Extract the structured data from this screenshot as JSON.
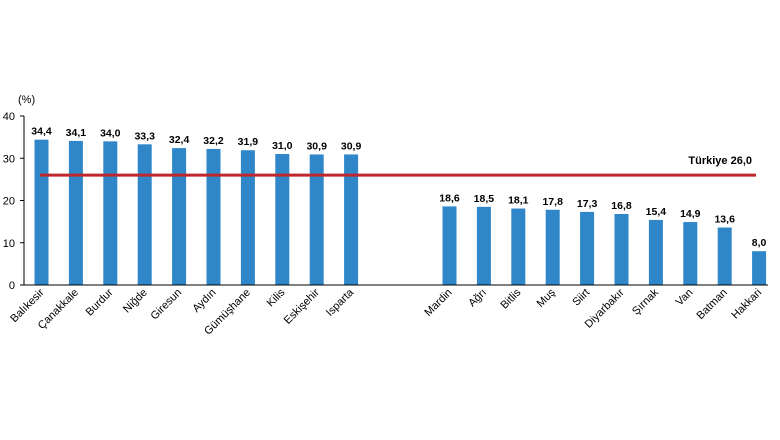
{
  "chart_data": {
    "type": "bar",
    "ylabel": "(%)",
    "ylim": [
      0,
      40
    ],
    "yticks": [
      "0",
      "10",
      "20",
      "30",
      "40"
    ],
    "grid": false,
    "categories": [
      "Balıkesir",
      "Çanakkale",
      "Burdur",
      "Niğde",
      "Giresun",
      "Aydın",
      "Gümüşhane",
      "Kilis",
      "Eskişehir",
      "Isparta",
      "Mardin",
      "Ağrı",
      "Bitlis",
      "Muş",
      "Siirt",
      "Diyarbakır",
      "Şırnak",
      "Van",
      "Batman",
      "Hakkari"
    ],
    "values": [
      34.4,
      34.1,
      34.0,
      33.3,
      32.4,
      32.2,
      31.9,
      31.0,
      30.9,
      30.9,
      18.6,
      18.5,
      18.1,
      17.8,
      17.3,
      16.8,
      15.4,
      14.9,
      13.6,
      8.0
    ],
    "value_labels": [
      "34,4",
      "34,1",
      "34,0",
      "33,3",
      "32,4",
      "32,2",
      "31,9",
      "31,0",
      "30,9",
      "30,9",
      "18,6",
      "18,5",
      "18,1",
      "17,8",
      "17,3",
      "16,8",
      "15,4",
      "14,9",
      "13,6",
      "8,0"
    ],
    "reference_line": {
      "label": "Türkiye  26,0",
      "value": 26.0,
      "color": "#c0272d"
    },
    "colors": {
      "bar": "#2f86c8",
      "axis": "#000000"
    }
  }
}
